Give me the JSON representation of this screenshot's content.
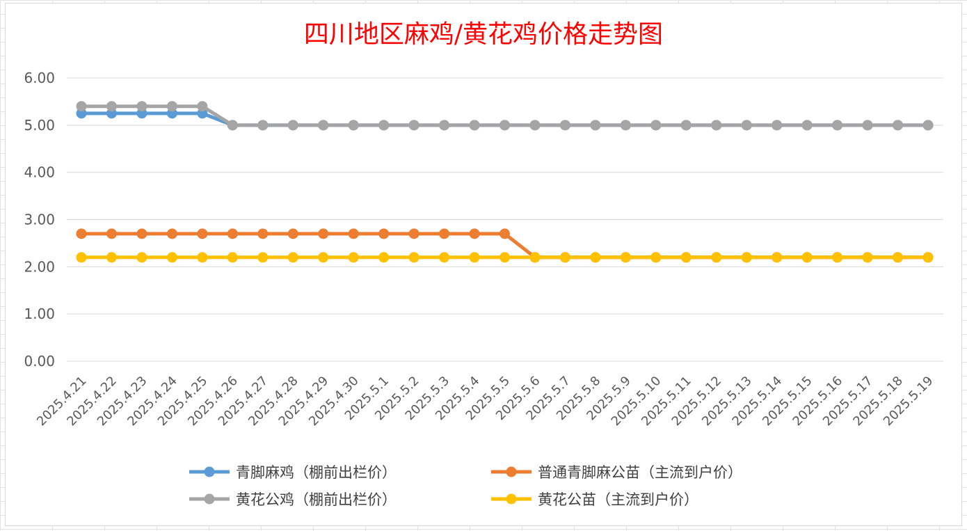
{
  "chart_data": {
    "type": "line",
    "title": "四川地区麻鸡/黄花鸡价格走势图",
    "xlabel": "",
    "ylabel": "",
    "ylim": [
      0,
      6
    ],
    "y_ticks": [
      "0.00",
      "1.00",
      "2.00",
      "3.00",
      "4.00",
      "5.00",
      "6.00"
    ],
    "grid": true,
    "legend_position": "bottom",
    "categories": [
      "2025.4.21",
      "2025.4.22",
      "2025.4.23",
      "2025.4.24",
      "2025.4.25",
      "2025.4.26",
      "2025.4.27",
      "2025.4.28",
      "2025.4.29",
      "2025.4.30",
      "2025.5.1",
      "2025.5.2",
      "2025.5.3",
      "2025.5.4",
      "2025.5.5",
      "2025.5.6",
      "2025.5.7",
      "2025.5.8",
      "2025.5.9",
      "2025.5.10",
      "2025.5.11",
      "2025.5.12",
      "2025.5.13",
      "2025.5.14",
      "2025.5.15",
      "2025.5.16",
      "2025.5.17",
      "2025.5.18",
      "2025.5.19"
    ],
    "series": [
      {
        "name": "青脚麻鸡（棚前出栏价）",
        "color": "#5b9bd5",
        "values": [
          5.25,
          5.25,
          5.25,
          5.25,
          5.25,
          5.0,
          5.0,
          5.0,
          5.0,
          5.0,
          5.0,
          5.0,
          5.0,
          5.0,
          5.0,
          5.0,
          5.0,
          5.0,
          5.0,
          5.0,
          5.0,
          5.0,
          5.0,
          5.0,
          5.0,
          5.0,
          5.0,
          5.0,
          5.0
        ]
      },
      {
        "name": "普通青脚麻公苗（主流到户价）",
        "color": "#ed7d31",
        "values": [
          2.7,
          2.7,
          2.7,
          2.7,
          2.7,
          2.7,
          2.7,
          2.7,
          2.7,
          2.7,
          2.7,
          2.7,
          2.7,
          2.7,
          2.7,
          2.2,
          2.2,
          2.2,
          2.2,
          2.2,
          2.2,
          2.2,
          2.2,
          2.2,
          2.2,
          2.2,
          2.2,
          2.2,
          2.2
        ]
      },
      {
        "name": "黄花公鸡（棚前出栏价）",
        "color": "#a5a5a5",
        "values": [
          5.4,
          5.4,
          5.4,
          5.4,
          5.4,
          5.0,
          5.0,
          5.0,
          5.0,
          5.0,
          5.0,
          5.0,
          5.0,
          5.0,
          5.0,
          5.0,
          5.0,
          5.0,
          5.0,
          5.0,
          5.0,
          5.0,
          5.0,
          5.0,
          5.0,
          5.0,
          5.0,
          5.0,
          5.0
        ]
      },
      {
        "name": "黄花公苗（主流到户价）",
        "color": "#ffc000",
        "values": [
          2.2,
          2.2,
          2.2,
          2.2,
          2.2,
          2.2,
          2.2,
          2.2,
          2.2,
          2.2,
          2.2,
          2.2,
          2.2,
          2.2,
          2.2,
          2.2,
          2.2,
          2.2,
          2.2,
          2.2,
          2.2,
          2.2,
          2.2,
          2.2,
          2.2,
          2.2,
          2.2,
          2.2,
          2.2
        ]
      }
    ]
  }
}
